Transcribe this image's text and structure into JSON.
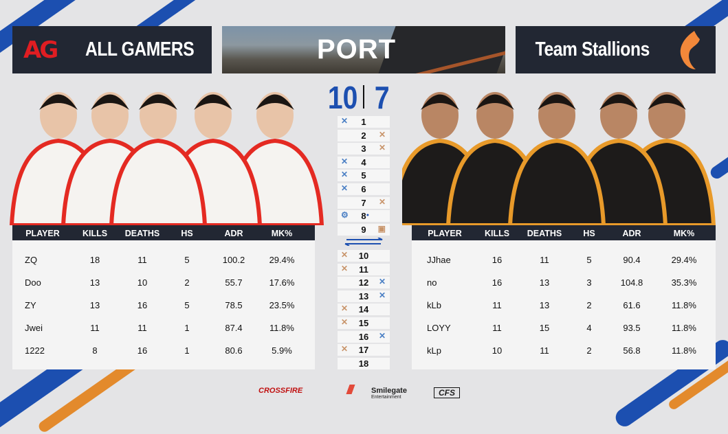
{
  "colors": {
    "blue": "#1c4fb0",
    "orange": "#c8946a",
    "header_bg": "#222733"
  },
  "map": {
    "name": "PORT"
  },
  "left_team": {
    "name": "ALL GAMERS",
    "logo": "AG",
    "score": "10"
  },
  "right_team": {
    "name": "Team Stallions",
    "score": "7"
  },
  "score_separator": "|",
  "columns": [
    "PLAYER",
    "KILLS",
    "DEATHS",
    "HS",
    "ADR",
    "MK%"
  ],
  "left_players": [
    {
      "player": "ZQ",
      "kills": "18",
      "deaths": "11",
      "hs": "5",
      "adr": "100.2",
      "mk": "29.4%"
    },
    {
      "player": "Doo",
      "kills": "13",
      "deaths": "10",
      "hs": "2",
      "adr": "55.7",
      "mk": "17.6%"
    },
    {
      "player": "ZY",
      "kills": "13",
      "deaths": "16",
      "hs": "5",
      "adr": "78.5",
      "mk": "23.5%"
    },
    {
      "player": "Jwei",
      "kills": "11",
      "deaths": "11",
      "hs": "1",
      "adr": "87.4",
      "mk": "11.8%"
    },
    {
      "player": "1222",
      "kills": "8",
      "deaths": "16",
      "hs": "1",
      "adr": "80.6",
      "mk": "5.9%"
    }
  ],
  "right_players": [
    {
      "player": "JJhae",
      "kills": "16",
      "deaths": "11",
      "hs": "5",
      "adr": "90.4",
      "mk": "29.4%"
    },
    {
      "player": "no",
      "kills": "16",
      "deaths": "13",
      "hs": "3",
      "adr": "104.8",
      "mk": "35.3%"
    },
    {
      "player": "kLb",
      "kills": "11",
      "deaths": "13",
      "hs": "2",
      "adr": "61.6",
      "mk": "11.8%"
    },
    {
      "player": "LOYY",
      "kills": "11",
      "deaths": "15",
      "hs": "4",
      "adr": "93.5",
      "mk": "11.8%"
    },
    {
      "player": "kLp",
      "kills": "10",
      "deaths": "11",
      "hs": "2",
      "adr": "56.8",
      "mk": "11.8%"
    }
  ],
  "rounds": [
    {
      "n": "1",
      "left": "blue-elimination",
      "right": ""
    },
    {
      "n": "2",
      "left": "",
      "right": "orange-elimination"
    },
    {
      "n": "3",
      "left": "",
      "right": "orange-elimination"
    },
    {
      "n": "4",
      "left": "blue-elimination",
      "right": ""
    },
    {
      "n": "5",
      "left": "blue-elimination",
      "right": ""
    },
    {
      "n": "6",
      "left": "blue-elimination",
      "right": ""
    },
    {
      "n": "7",
      "left": "",
      "right": "orange-elimination"
    },
    {
      "n": "8",
      "left": "blue-defuse",
      "right": "blue-dot"
    },
    {
      "n": "9",
      "left": "",
      "right": "orange-bomb"
    },
    {
      "n": "10",
      "left": "orange-elimination",
      "right": ""
    },
    {
      "n": "11",
      "left": "orange-elimination",
      "right": ""
    },
    {
      "n": "12",
      "left": "",
      "right": "blue-elimination"
    },
    {
      "n": "13",
      "left": "",
      "right": "blue-elimination"
    },
    {
      "n": "14",
      "left": "orange-elimination",
      "right": ""
    },
    {
      "n": "15",
      "left": "orange-elimination",
      "right": ""
    },
    {
      "n": "16",
      "left": "",
      "right": "blue-elimination"
    },
    {
      "n": "17",
      "left": "orange-elimination",
      "right": ""
    },
    {
      "n": "18",
      "left": "",
      "right": ""
    }
  ],
  "footer": {
    "crossfire": "CROSSFIRE",
    "smilegate": "Smilegate",
    "smilegate_sub": "Entertainment",
    "cfs": "CFS"
  }
}
